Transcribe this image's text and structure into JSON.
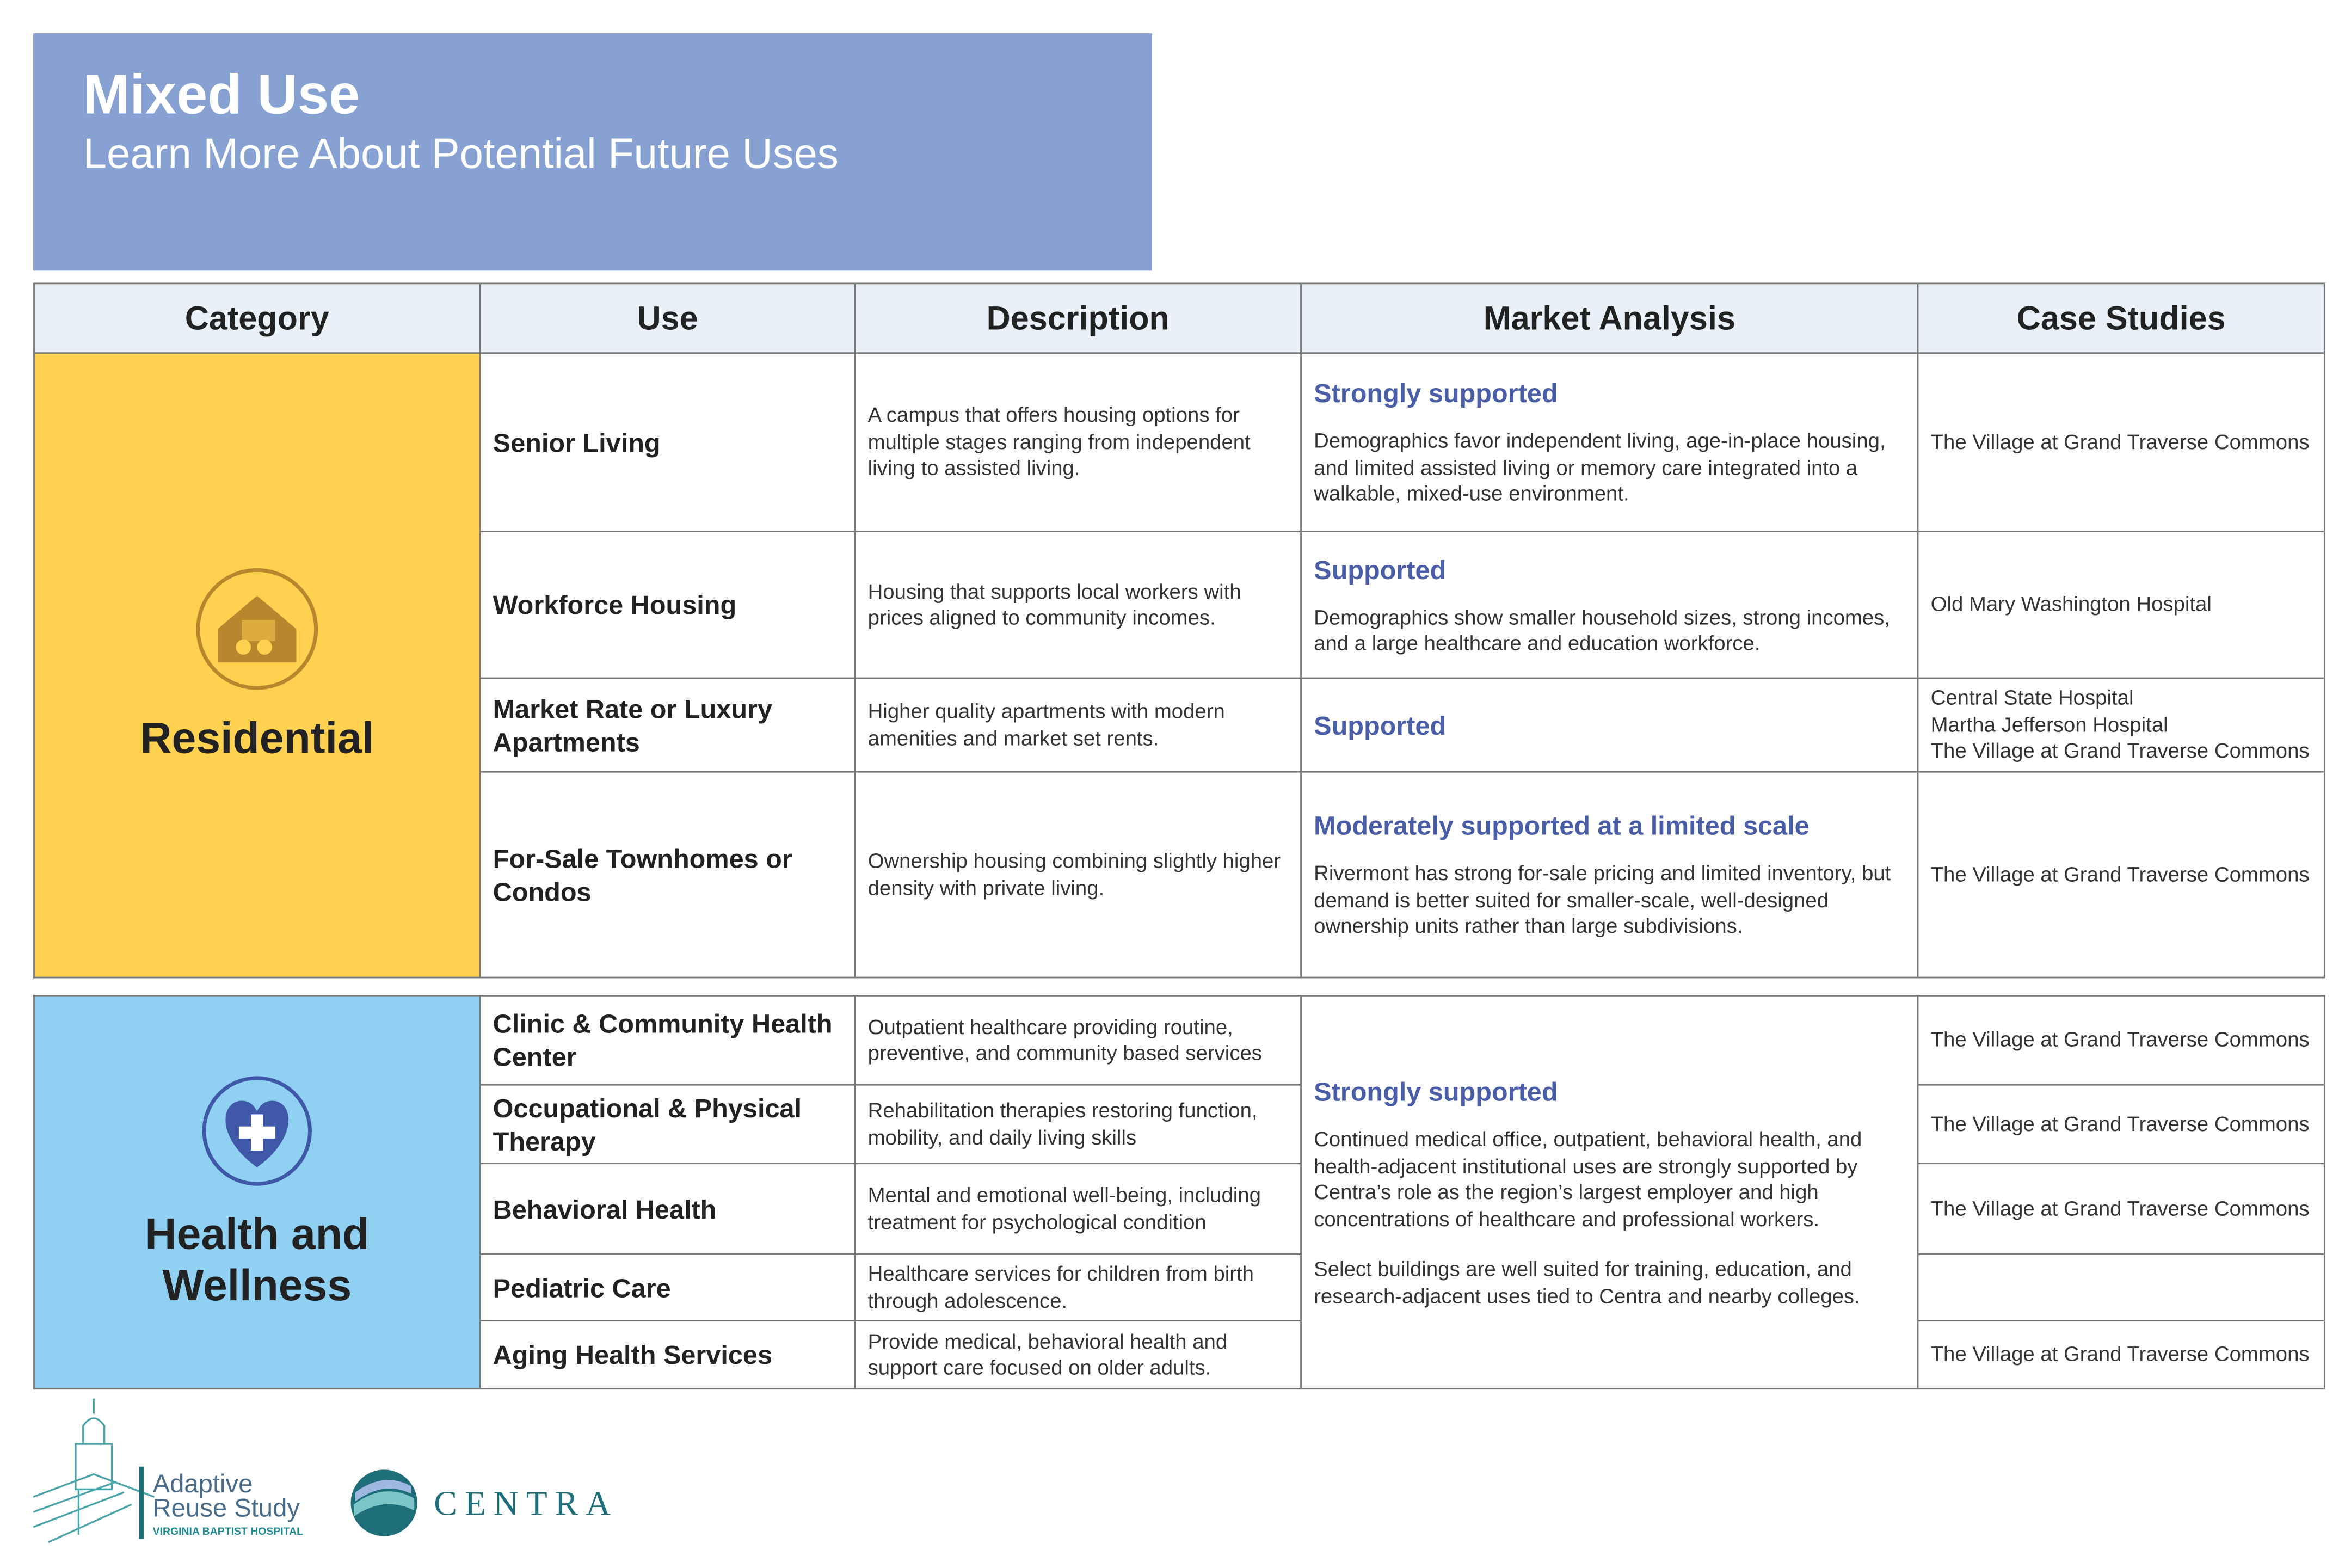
{
  "header": {
    "title": "Mixed Use",
    "subtitle": "Learn More About Potential Future Uses"
  },
  "table": {
    "columns": [
      "Category",
      "Use",
      "Description",
      "Market Analysis",
      "Case Studies"
    ],
    "groups": [
      {
        "category": "Residential",
        "shared_market": false,
        "rows": [
          {
            "use": "Senior Living",
            "description": "A campus that offers housing options for multiple stages ranging from independent living to assisted living.",
            "market_heading": "Strongly supported",
            "market_text": [
              "Demographics favor independent living, age-in-place housing, and limited assisted living or memory care integrated into a walkable, mixed-use environment."
            ],
            "case_studies": [
              "The Village at Grand Traverse Commons"
            ]
          },
          {
            "use": "Workforce Housing",
            "description": "Housing that supports local workers with prices aligned to community incomes.",
            "market_heading": "Supported",
            "market_text": [
              "Demographics show smaller household sizes, strong incomes, and a large healthcare and education workforce."
            ],
            "case_studies": [
              "Old Mary Washington Hospital"
            ]
          },
          {
            "use": "Market Rate or Luxury Apartments",
            "description": "Higher quality apartments with modern amenities and market set rents.",
            "market_heading": "Supported",
            "market_text": [],
            "case_studies": [
              "Central State Hospital",
              "Martha Jefferson Hospital",
              "The Village at Grand Traverse Commons"
            ]
          },
          {
            "use": "For-Sale Townhomes or Condos",
            "description": "Ownership housing combining slightly higher density with private living.",
            "market_heading": "Moderately supported at a limited scale",
            "market_text": [
              "Rivermont has strong for-sale pricing and limited inventory, but demand is better suited for smaller-scale, well-designed ownership units rather than large subdivisions."
            ],
            "case_studies": [
              "The Village at Grand Traverse Commons"
            ]
          }
        ]
      },
      {
        "category": "Health and Wellness",
        "shared_market": true,
        "market_heading": "Strongly supported",
        "market_text": [
          "Continued medical office, outpatient, behavioral health, and health-adjacent institutional uses are strongly supported by Centra’s role as the region’s largest employer and high concentrations of healthcare and professional workers.",
          "Select buildings are well suited for training, education, and research-adjacent uses tied to Centra and nearby colleges."
        ],
        "rows": [
          {
            "use": "Clinic & Community Health Center",
            "description": "Outpatient healthcare providing routine, preventive, and community based services",
            "case_studies": [
              "The Village at Grand Traverse Commons"
            ]
          },
          {
            "use": "Occupational & Physical Therapy",
            "description": "Rehabilitation therapies restoring function, mobility, and daily living skills",
            "case_studies": [
              "The Village at Grand Traverse Commons"
            ]
          },
          {
            "use": "Behavioral Health",
            "description": "Mental and emotional well-being, including treatment for psychological condition",
            "case_studies": [
              "The Village at Grand Traverse Commons"
            ]
          },
          {
            "use": "Pediatric Care",
            "description": "Healthcare services for children from birth through adolescence.",
            "case_studies": []
          },
          {
            "use": "Aging Health Services",
            "description": "Provide medical, behavioral health and support care focused on older adults.",
            "case_studies": [
              "The Village at Grand Traverse Commons"
            ]
          }
        ]
      }
    ]
  },
  "footer": {
    "logo_line1": "Adaptive",
    "logo_line2": "Reuse Study",
    "logo_sub": "VIRGINIA BAPTIST HOSPITAL",
    "partner": "CENTRA"
  }
}
